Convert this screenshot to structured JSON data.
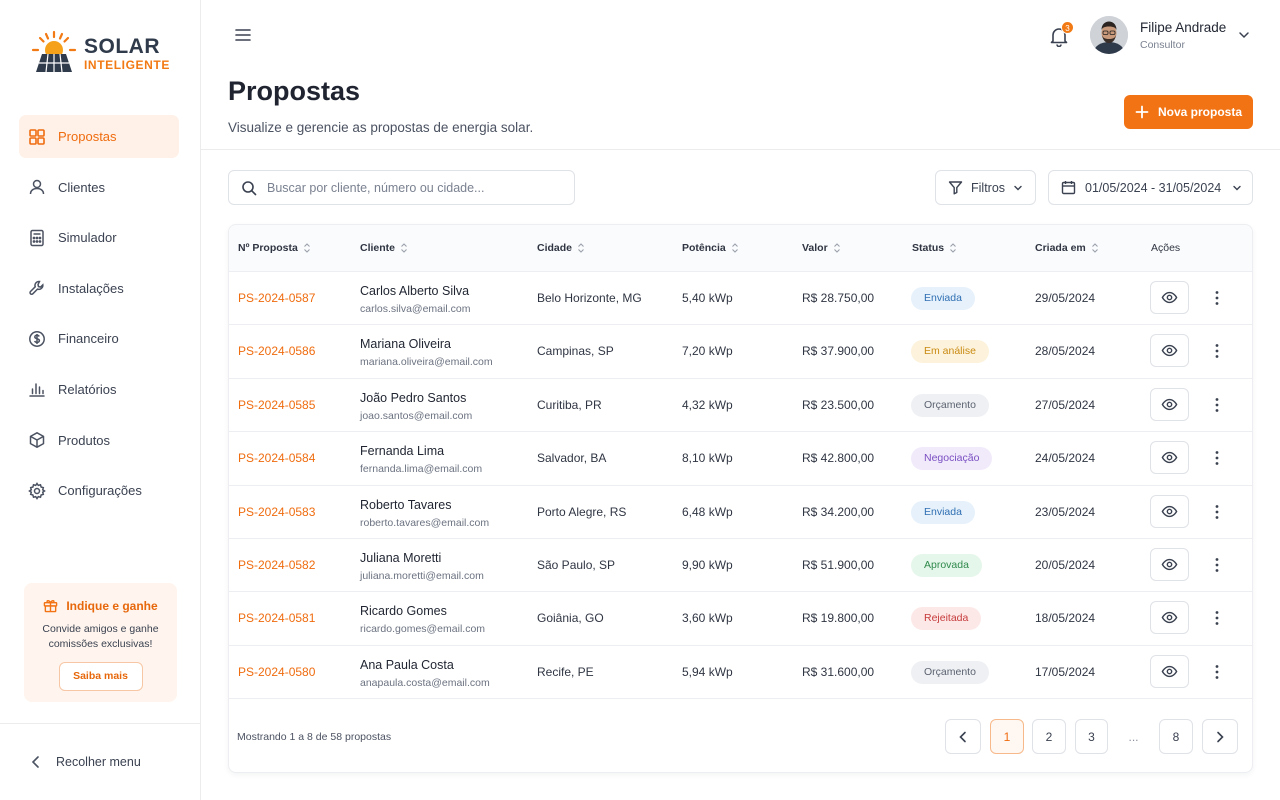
{
  "brand": {
    "name_line1": "SOLAR",
    "name_line2": "INTELIGENTE",
    "accent": "#f27314"
  },
  "sidebar": {
    "items": [
      {
        "label": "Propostas",
        "icon": "grid-icon",
        "active": true
      },
      {
        "label": "Clientes",
        "icon": "user-icon"
      },
      {
        "label": "Simulador",
        "icon": "calculator-icon"
      },
      {
        "label": "Instalações",
        "icon": "wrench-icon"
      },
      {
        "label": "Financeiro",
        "icon": "dollar-icon"
      },
      {
        "label": "Relatórios",
        "icon": "bar-chart-icon"
      },
      {
        "label": "Produtos",
        "icon": "box-icon"
      },
      {
        "label": "Configurações",
        "icon": "gear-icon"
      }
    ],
    "promo": {
      "title": "Indique e ganhe",
      "text": "Convide amigos e ganhe comissões exclusivas!",
      "button": "Saiba mais"
    },
    "collapse_label": "Recolher menu"
  },
  "header": {
    "notifications": "3",
    "user_name": "Filipe Andrade",
    "user_role": "Consultor"
  },
  "page": {
    "title": "Propostas",
    "subtitle": "Visualize e gerencie as propostas de energia solar.",
    "new_button": "Nova proposta"
  },
  "toolbar": {
    "search_placeholder": "Buscar por cliente, número ou cidade...",
    "filters_label": "Filtros",
    "date_range": "01/05/2024 - 31/05/2024"
  },
  "table": {
    "columns": [
      "Nº Proposta",
      "Cliente",
      "Cidade",
      "Potência",
      "Valor",
      "Status",
      "Criada em",
      "Ações"
    ],
    "rows": [
      {
        "num": "PS-2024-0587",
        "name": "Carlos Alberto Silva",
        "email": "carlos.silva@email.com",
        "city": "Belo Horizonte, MG",
        "power": "5,40 kWp",
        "value": "R$ 28.750,00",
        "status": "Enviada",
        "date": "29/05/2024"
      },
      {
        "num": "PS-2024-0586",
        "name": "Mariana Oliveira",
        "email": "mariana.oliveira@email.com",
        "city": "Campinas, SP",
        "power": "7,20 kWp",
        "value": "R$ 37.900,00",
        "status": "Em análise",
        "date": "28/05/2024"
      },
      {
        "num": "PS-2024-0585",
        "name": "João Pedro Santos",
        "email": "joao.santos@email.com",
        "city": "Curitiba, PR",
        "power": "4,32 kWp",
        "value": "R$ 23.500,00",
        "status": "Orçamento",
        "date": "27/05/2024"
      },
      {
        "num": "PS-2024-0584",
        "name": "Fernanda Lima",
        "email": "fernanda.lima@email.com",
        "city": "Salvador, BA",
        "power": "8,10 kWp",
        "value": "R$ 42.800,00",
        "status": "Negociação",
        "date": "24/05/2024"
      },
      {
        "num": "PS-2024-0583",
        "name": "Roberto Tavares",
        "email": "roberto.tavares@email.com",
        "city": "Porto Alegre, RS",
        "power": "6,48 kWp",
        "value": "R$ 34.200,00",
        "status": "Enviada",
        "date": "23/05/2024"
      },
      {
        "num": "PS-2024-0582",
        "name": "Juliana Moretti",
        "email": "juliana.moretti@email.com",
        "city": "São Paulo, SP",
        "power": "9,90 kWp",
        "value": "R$ 51.900,00",
        "status": "Aprovada",
        "date": "20/05/2024"
      },
      {
        "num": "PS-2024-0581",
        "name": "Ricardo Gomes",
        "email": "ricardo.gomes@email.com",
        "city": "Goiânia, GO",
        "power": "3,60 kWp",
        "value": "R$ 19.800,00",
        "status": "Rejeitada",
        "date": "18/05/2024"
      },
      {
        "num": "PS-2024-0580",
        "name": "Ana Paula Costa",
        "email": "anapaula.costa@email.com",
        "city": "Recife, PE",
        "power": "5,94 kWp",
        "value": "R$ 31.600,00",
        "status": "Orçamento",
        "date": "17/05/2024"
      }
    ],
    "status_colors": {
      "Enviada": {
        "bg": "#e6f1fb",
        "fg": "#2f6fb3"
      },
      "Em análise": {
        "bg": "#fdf3dc",
        "fg": "#c98a12"
      },
      "Orçamento": {
        "bg": "#eef0f3",
        "fg": "#5b6270"
      },
      "Negociação": {
        "bg": "#f1eafb",
        "fg": "#7a4fc2"
      },
      "Aprovada": {
        "bg": "#e5f6ea",
        "fg": "#2f8a4c"
      },
      "Rejeitada": {
        "bg": "#fde8e8",
        "fg": "#c63b3b"
      }
    }
  },
  "pagination": {
    "summary": "Mostrando 1 a 8 de 58 propostas",
    "pages": [
      "1",
      "2",
      "3",
      "...",
      "8"
    ],
    "current": "1"
  }
}
